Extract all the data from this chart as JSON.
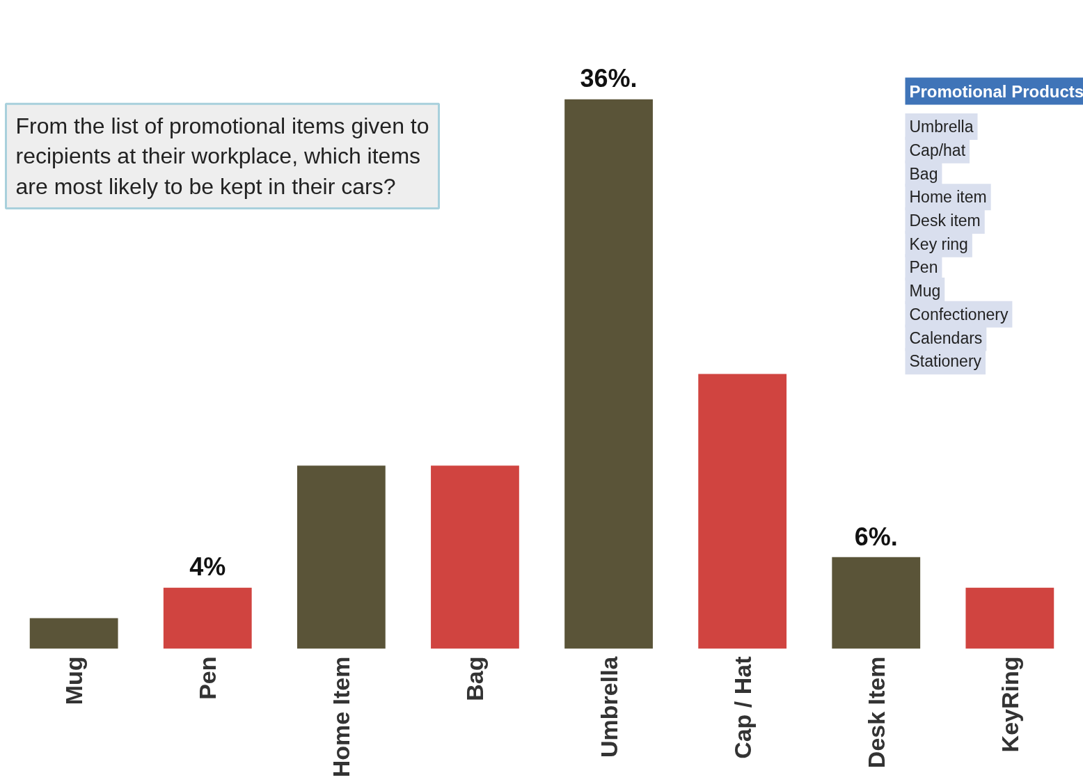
{
  "chart_data": {
    "type": "bar",
    "title": "From the list of promotional items given to recipients at their workplace, which items are most likely to be kept in their cars?",
    "categories": [
      "Mug",
      "Pen",
      "Home Item",
      "Bag",
      "Umbrella",
      "Cap / Hat",
      "Desk Item",
      "KeyRing"
    ],
    "values": [
      2,
      4,
      12,
      12,
      36,
      18,
      6,
      4
    ],
    "colors": [
      "#5a5438",
      "#d04440",
      "#5a5438",
      "#d04440",
      "#5a5438",
      "#d04440",
      "#5a5438",
      "#d04440"
    ],
    "value_labels": [
      null,
      "4%",
      null,
      null,
      "36%.",
      null,
      "6%.",
      null
    ],
    "annotations": [
      "Promotional Products",
      "Umbrella",
      "Cap/hat",
      "Bag",
      "Home item",
      "Desk item",
      "Key ring",
      "Pen",
      "Mug",
      "Confectionery",
      "Calendars",
      "Stationery"
    ]
  }
}
